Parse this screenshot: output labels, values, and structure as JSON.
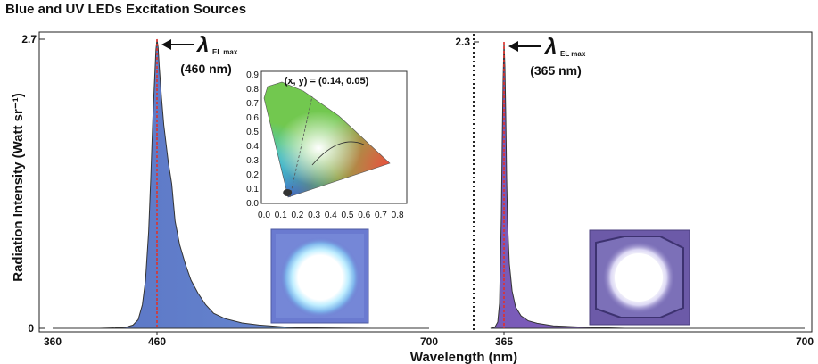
{
  "title": "Blue and UV LEDs Excitation Sources",
  "chart_data": [
    {
      "type": "area",
      "panel": "Blue LED",
      "x_range": [
        360,
        700
      ],
      "x_ticks": [
        "360",
        "460",
        "700"
      ],
      "y_ticks": [
        "0",
        "2.7"
      ],
      "ylim": [
        0,
        2.7
      ],
      "ylabel": "Radiation Intensity (Watt sr⁻¹)",
      "peak_marker": {
        "symbol": "λ",
        "sub": "EL max",
        "value": "(460 nm)",
        "x": 460
      },
      "series": [
        {
          "x": [
            360,
            405,
            420,
            430,
            437,
            442,
            446,
            449,
            452,
            454,
            456,
            458,
            459,
            460,
            461,
            462,
            464,
            466,
            468,
            470,
            473,
            476,
            480,
            485,
            490,
            496,
            503,
            510,
            520,
            535,
            550,
            575,
            600,
            650,
            700
          ],
          "y": [
            0,
            0,
            0.004,
            0.01,
            0.03,
            0.08,
            0.22,
            0.45,
            0.9,
            1.4,
            1.95,
            2.4,
            2.6,
            2.7,
            2.62,
            2.45,
            2.15,
            1.9,
            1.72,
            1.55,
            1.35,
            1.0,
            0.78,
            0.6,
            0.45,
            0.33,
            0.22,
            0.14,
            0.09,
            0.05,
            0.03,
            0.01,
            0.004,
            0,
            0
          ]
        }
      ]
    },
    {
      "type": "area",
      "panel": "UV LED",
      "x_range": [
        350,
        700
      ],
      "x_ticks": [
        "365",
        "700"
      ],
      "y_ticks": [
        "2.3"
      ],
      "ylim": [
        0,
        2.3
      ],
      "peak_marker": {
        "symbol": "λ",
        "sub": "EL max",
        "value": "(365 nm)",
        "x": 365
      },
      "series": [
        {
          "x": [
            350,
            355,
            358,
            360,
            362,
            363,
            364,
            365,
            366,
            367,
            368,
            369,
            371,
            374,
            378,
            384,
            392,
            402,
            420,
            450,
            500,
            700
          ],
          "y": [
            0,
            0.01,
            0.05,
            0.2,
            0.9,
            1.5,
            2.0,
            2.3,
            2.1,
            1.7,
            1.2,
            0.85,
            0.52,
            0.3,
            0.17,
            0.1,
            0.06,
            0.04,
            0.02,
            0.01,
            0,
            0
          ]
        }
      ]
    },
    {
      "type": "scatter",
      "panel": "CIE chromaticity inset",
      "annotation": "(x, y) = (0.14, 0.05)",
      "x_ticks": [
        "0.0",
        "0.1",
        "0.2",
        "0.3",
        "0.4",
        "0.5",
        "0.6",
        "0.7",
        "0.8"
      ],
      "y_ticks": [
        "0.0",
        "0.1",
        "0.2",
        "0.3",
        "0.4",
        "0.5",
        "0.6",
        "0.7",
        "0.8",
        "0.9"
      ],
      "xlim": [
        0,
        0.8
      ],
      "ylim": [
        0,
        0.9
      ],
      "points": [
        {
          "x": 0.14,
          "y": 0.05
        }
      ]
    }
  ],
  "xlabel": "Wavelength (nm)",
  "colors": {
    "dotted_line": "#222222",
    "peak_line": "#e0312b",
    "blue_fill": "#5b77c7",
    "uv_fill": "#7358b8",
    "led_bg": "#6a7ad0",
    "uv_led_bg": "#6c5aa8"
  }
}
